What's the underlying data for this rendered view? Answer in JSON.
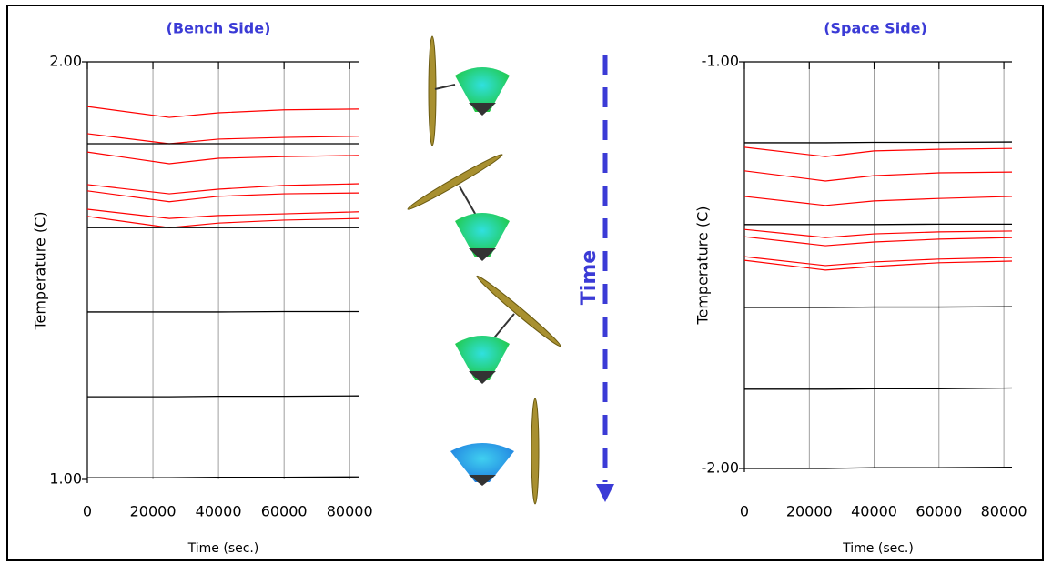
{
  "chart_data": [
    {
      "type": "line",
      "title": "(Bench Side)",
      "x_label": "Time (sec.)",
      "y_label": "Temperature (C)",
      "x": [
        0,
        25000,
        40000,
        60000,
        83000
      ],
      "xlim": [
        0,
        83000
      ],
      "xticks": [
        0,
        20000,
        40000,
        60000,
        80000
      ],
      "ylim": [
        1,
        2
      ],
      "yticks": [
        {
          "value": 2,
          "label": "2.00"
        },
        {
          "value": 1,
          "label": "1.00"
        }
      ],
      "grid": true,
      "series": [
        {
          "color": "#ff0000",
          "values": [
            1.893,
            1.867,
            1.878,
            1.885,
            1.887
          ]
        },
        {
          "color": "#ff0000",
          "values": [
            1.828,
            1.804,
            1.815,
            1.819,
            1.822
          ]
        },
        {
          "color": "#ff0000",
          "values": [
            1.784,
            1.756,
            1.769,
            1.773,
            1.776
          ]
        },
        {
          "color": "#ff0000",
          "values": [
            1.706,
            1.684,
            1.695,
            1.704,
            1.708
          ]
        },
        {
          "color": "#ff0000",
          "values": [
            1.691,
            1.665,
            1.678,
            1.684,
            1.686
          ]
        },
        {
          "color": "#ff0000",
          "values": [
            1.647,
            1.625,
            1.632,
            1.636,
            1.641
          ]
        },
        {
          "color": "#ff0000",
          "values": [
            1.63,
            1.603,
            1.614,
            1.621,
            1.625
          ]
        },
        {
          "color": "#000000",
          "values": [
            1.804,
            1.804,
            1.804,
            1.804,
            1.804
          ]
        },
        {
          "color": "#000000",
          "values": [
            1.603,
            1.603,
            1.603,
            1.603,
            1.603
          ]
        },
        {
          "color": "#000000",
          "values": [
            1.401,
            1.401,
            1.401,
            1.402,
            1.402
          ]
        },
        {
          "color": "#000000",
          "values": [
            1.198,
            1.198,
            1.199,
            1.199,
            1.2
          ]
        },
        {
          "color": "#000000",
          "values": [
            1.004,
            1.004,
            1.005,
            1.005,
            1.006
          ]
        }
      ]
    },
    {
      "type": "line",
      "title": "(Space Side)",
      "x_label": "Time (sec.)",
      "y_label": "Temperature (C)",
      "x": [
        0,
        25000,
        40000,
        60000,
        82500
      ],
      "xlim": [
        0,
        82500
      ],
      "xticks": [
        0,
        20000,
        40000,
        60000,
        80000
      ],
      "ylim": [
        -2,
        -1
      ],
      "yticks": [
        {
          "value": -1,
          "label": "-1.00"
        },
        {
          "value": -2,
          "label": "-2.00"
        }
      ],
      "grid": true,
      "series": [
        {
          "color": "#ff0000",
          "values": [
            -1.21,
            -1.233,
            -1.219,
            -1.215,
            -1.213
          ]
        },
        {
          "color": "#ff0000",
          "values": [
            -1.268,
            -1.293,
            -1.28,
            -1.273,
            -1.271
          ]
        },
        {
          "color": "#ff0000",
          "values": [
            -1.331,
            -1.353,
            -1.342,
            -1.336,
            -1.331
          ]
        },
        {
          "color": "#ff0000",
          "values": [
            -1.412,
            -1.432,
            -1.423,
            -1.418,
            -1.416
          ]
        },
        {
          "color": "#ff0000",
          "values": [
            -1.43,
            -1.452,
            -1.443,
            -1.436,
            -1.432
          ]
        },
        {
          "color": "#ff0000",
          "values": [
            -1.479,
            -1.501,
            -1.492,
            -1.485,
            -1.481
          ]
        },
        {
          "color": "#ff0000",
          "values": [
            -1.488,
            -1.512,
            -1.503,
            -1.494,
            -1.49
          ]
        },
        {
          "color": "#000000",
          "values": [
            -1.199,
            -1.199,
            -1.198,
            -1.198,
            -1.197
          ]
        },
        {
          "color": "#000000",
          "values": [
            -1.4,
            -1.4,
            -1.4,
            -1.399,
            -1.399
          ]
        },
        {
          "color": "#000000",
          "values": [
            -1.604,
            -1.604,
            -1.603,
            -1.603,
            -1.602
          ]
        },
        {
          "color": "#000000",
          "values": [
            -1.805,
            -1.805,
            -1.804,
            -1.804,
            -1.802
          ]
        },
        {
          "color": "#000000",
          "values": [
            -2,
            -2,
            -1.998,
            -1.998,
            -1.997
          ]
        }
      ]
    }
  ],
  "illustration": {
    "label": "Time"
  }
}
